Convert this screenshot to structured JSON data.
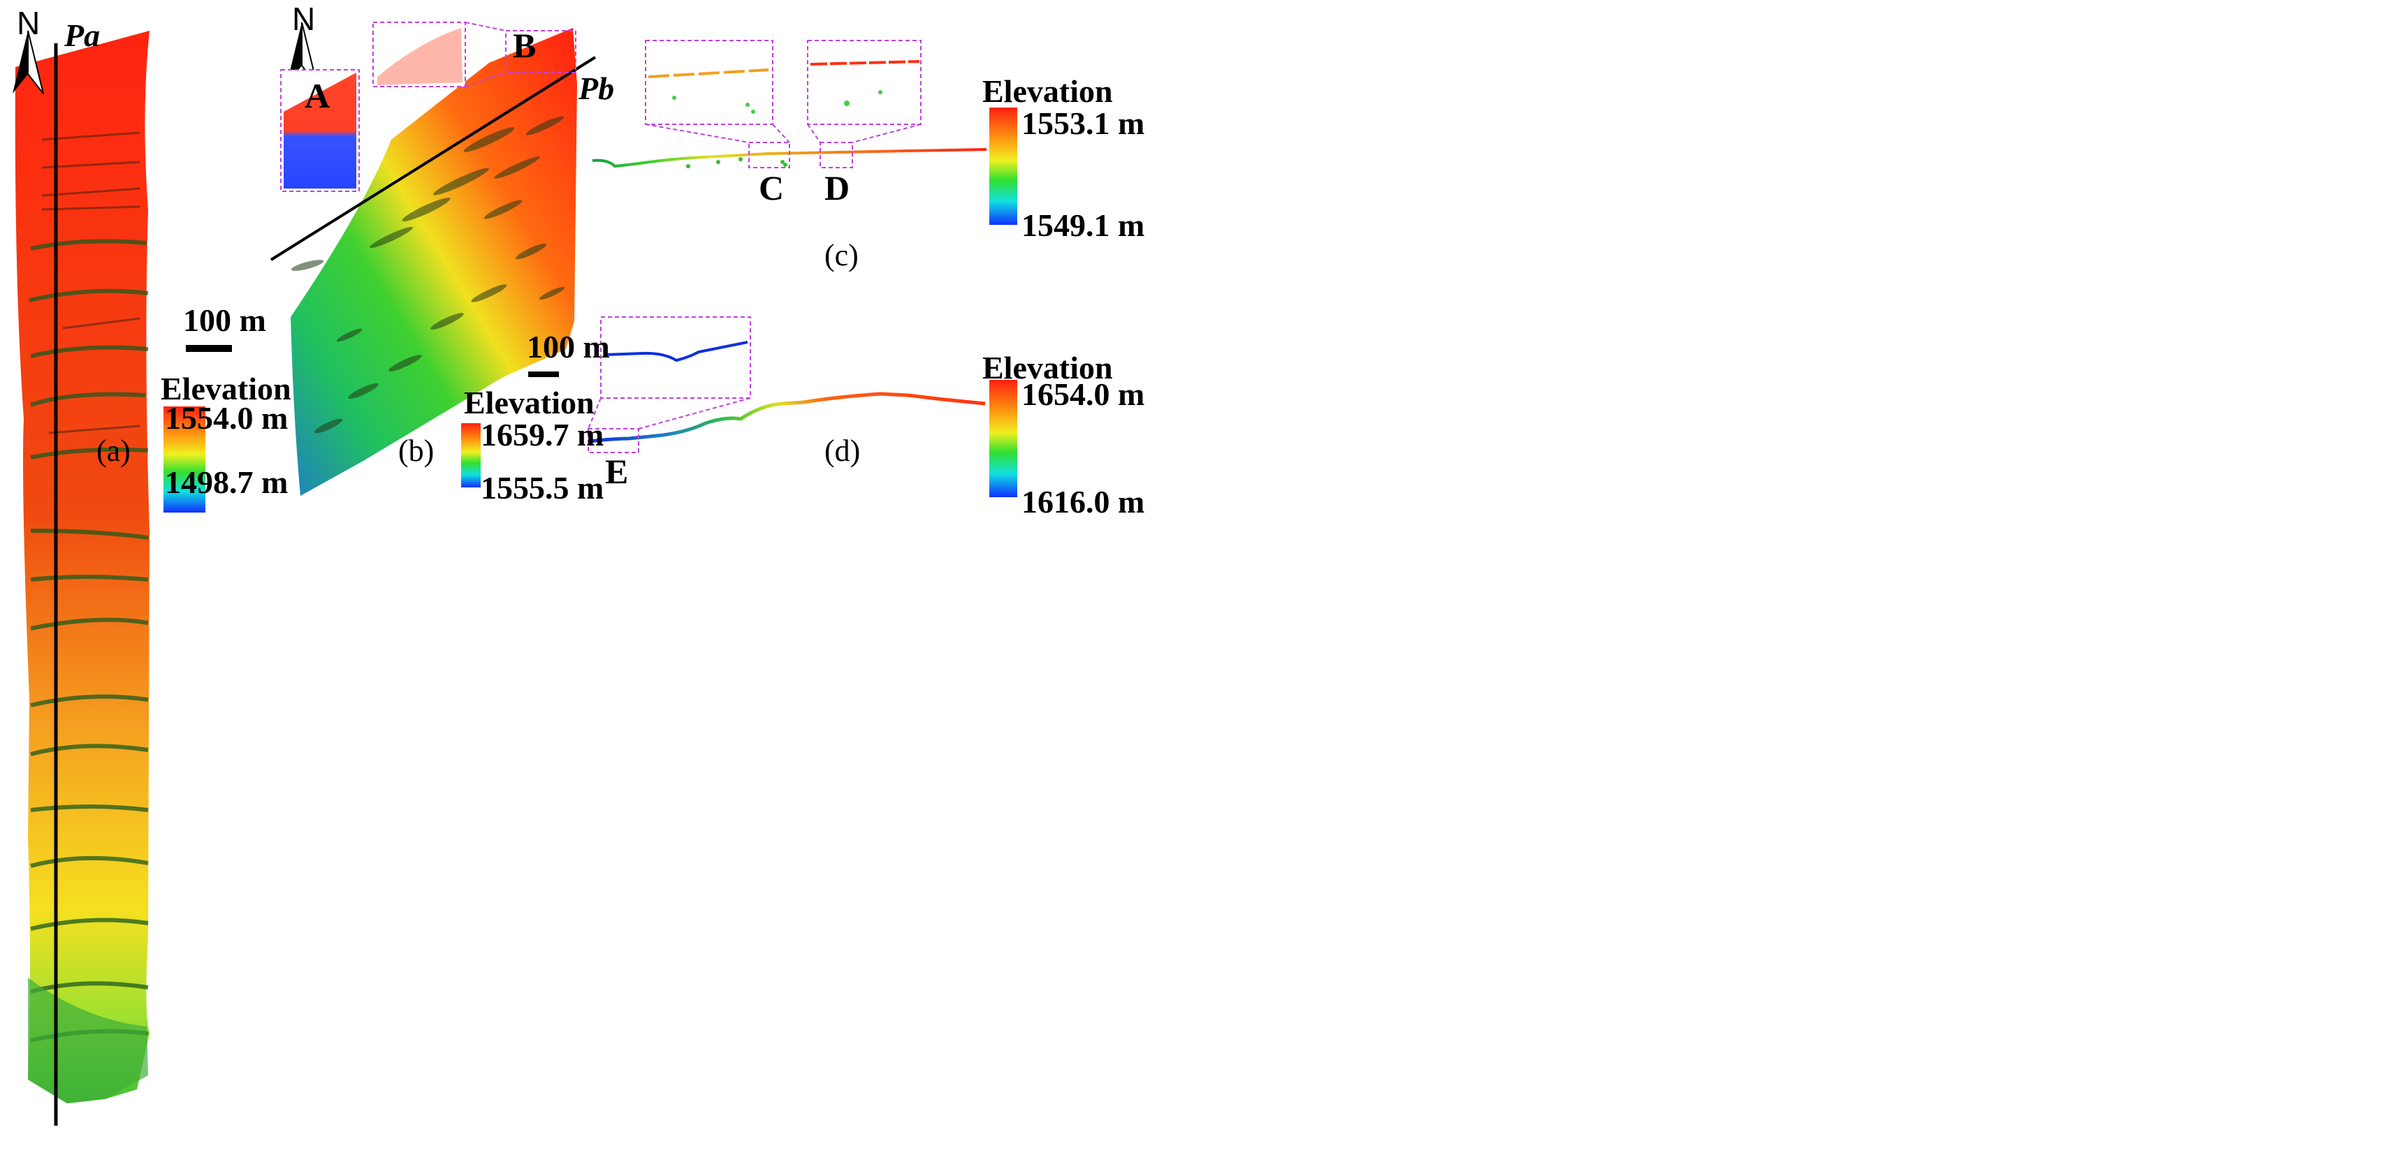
{
  "north_label": "N",
  "panels": {
    "a": {
      "caption": "(a)",
      "profile_label": "Pa",
      "scale": "100 m",
      "legend": {
        "title": "Elevation",
        "max": "1554.0 m",
        "min": "1498.7  m"
      }
    },
    "b": {
      "caption": "(b)",
      "profile_label": "Pb",
      "scale": "100 m",
      "insets": [
        "A",
        "B"
      ],
      "legend": {
        "title": "Elevation",
        "max": "1659.7  m",
        "min": "1555.5 m"
      }
    },
    "c": {
      "caption": "(c)",
      "insets": [
        "C",
        "D"
      ],
      "legend": {
        "title": "Elevation",
        "max": "1553.1 m",
        "min": "1549.1 m"
      }
    },
    "d": {
      "caption": "(d)",
      "insets": [
        "E"
      ],
      "legend": {
        "title": "Elevation",
        "max": "1654.0 m",
        "min": "1616.0 m"
      }
    }
  },
  "colors": {
    "inset_frame": "#c040e0",
    "ramp_high": "#ff2a10",
    "ramp_mid": "#20d020",
    "ramp_low": "#1040ff"
  }
}
